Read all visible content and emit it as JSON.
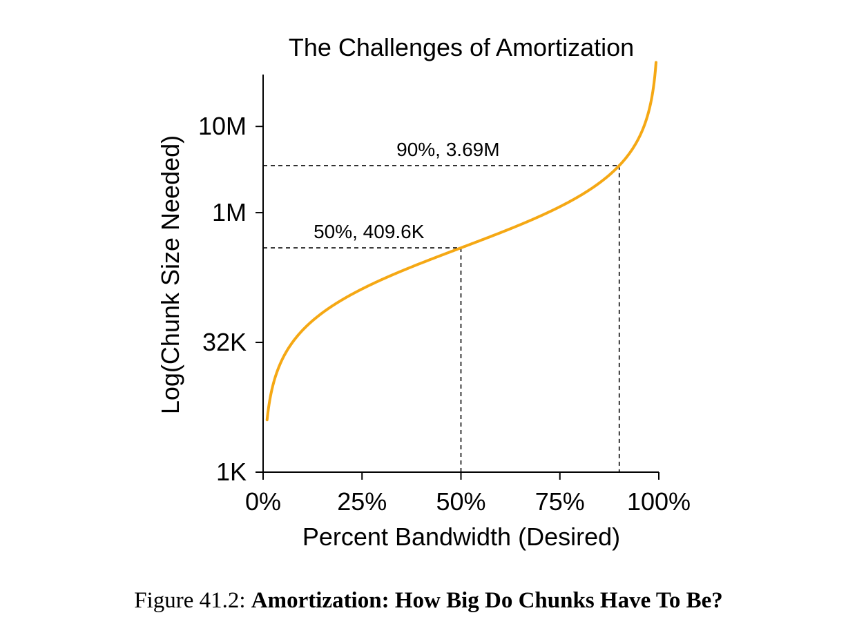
{
  "chart_data": {
    "type": "line",
    "title": "The Challenges of Amortization",
    "xlabel": "Percent Bandwidth (Desired)",
    "ylabel": "Log(Chunk Size Needed)",
    "x_ticks": [
      {
        "value": 0,
        "label": "0%"
      },
      {
        "value": 25,
        "label": "25%"
      },
      {
        "value": 50,
        "label": "50%"
      },
      {
        "value": 75,
        "label": "75%"
      },
      {
        "value": 100,
        "label": "100%"
      }
    ],
    "y_scale": "log",
    "y_ticks": [
      {
        "value": 1024,
        "label": "1K"
      },
      {
        "value": 32768,
        "label": "32K"
      },
      {
        "value": 1048576,
        "label": "1M"
      },
      {
        "value": 10485760,
        "label": "10M"
      }
    ],
    "xlim": [
      0,
      100
    ],
    "ylim": [
      1024,
      41943040
    ],
    "series": [
      {
        "color": "#f5a814",
        "curve": "x / (100 - x) * 409600",
        "x_range": [
          1,
          99.3
        ]
      }
    ],
    "annotations": [
      {
        "x": 50,
        "y": 409600,
        "label": "50%, 409.6K"
      },
      {
        "x": 90,
        "y": 3686400,
        "label": "90%, 3.69M"
      }
    ],
    "grid": false,
    "legend": "none"
  },
  "caption": {
    "prefix": "Figure 41.2:",
    "title": "Amortization: How Big Do Chunks Have To Be?"
  }
}
